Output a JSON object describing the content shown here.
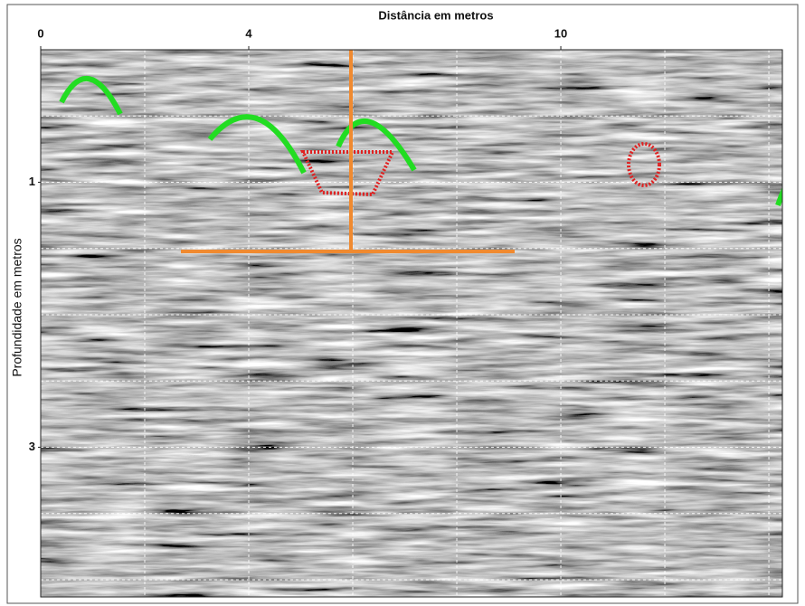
{
  "chart_data": {
    "type": "radargram",
    "title": "Distância em metros",
    "ylabel": "Profundidade em metros",
    "xlim": [
      0,
      14.26
    ],
    "ylim": [
      0,
      4.13
    ],
    "y_inverted": true,
    "xticks": [
      0,
      4,
      10
    ],
    "yticks": [
      1,
      3
    ],
    "xgrid": [
      2,
      4,
      6,
      8,
      10,
      12,
      14
    ],
    "ygrid": [
      0.5,
      1,
      1.5,
      2,
      2.5,
      3,
      3.5,
      4
    ],
    "grid": true
  }
}
